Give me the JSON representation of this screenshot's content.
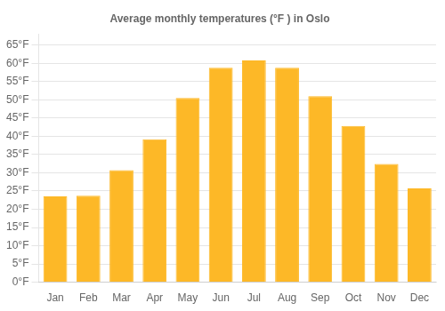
{
  "chart_data": {
    "type": "bar",
    "title": "Average monthly temperatures (°F ) in Oslo",
    "categories": [
      "Jan",
      "Feb",
      "Mar",
      "Apr",
      "May",
      "Jun",
      "Jul",
      "Aug",
      "Sep",
      "Oct",
      "Nov",
      "Dec"
    ],
    "values": [
      23.5,
      23.7,
      30.7,
      39.2,
      50.5,
      58.8,
      60.8,
      58.8,
      51.0,
      42.8,
      32.4,
      25.7
    ],
    "color": "#FDB827",
    "ylim": [
      0,
      68
    ],
    "yticks": [
      {
        "value": 0,
        "label": "0°F"
      },
      {
        "value": 5,
        "label": "5°F"
      },
      {
        "value": 10,
        "label": "10°F"
      },
      {
        "value": 15,
        "label": "15°F"
      },
      {
        "value": 20,
        "label": "20°F"
      },
      {
        "value": 25,
        "label": "25°F"
      },
      {
        "value": 30,
        "label": "30°F"
      },
      {
        "value": 35,
        "label": "35°F"
      },
      {
        "value": 40,
        "label": "40°F"
      },
      {
        "value": 45,
        "label": "45°F"
      },
      {
        "value": 50,
        "label": "50°F"
      },
      {
        "value": 55,
        "label": "55°F"
      },
      {
        "value": 60,
        "label": "60°F"
      },
      {
        "value": 65,
        "label": "65°F"
      }
    ],
    "grid": true
  }
}
